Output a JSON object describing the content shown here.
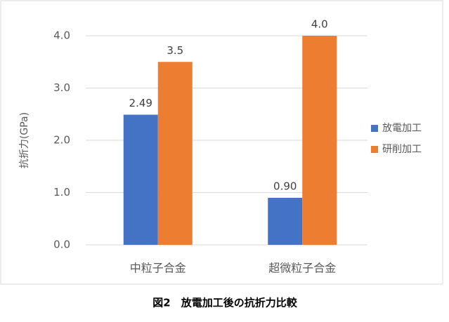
{
  "chart_data": {
    "type": "bar",
    "y_label": "抗折力(GPa)",
    "caption": "図2　放電加工後の抗折力比較",
    "categories": [
      "中粒子合金",
      "超微粒子合金"
    ],
    "series": [
      {
        "name": "放電加工",
        "color": "#4472c4",
        "values": [
          2.49,
          0.9
        ],
        "value_labels": [
          "2.49",
          "0.90"
        ]
      },
      {
        "name": "研削加工",
        "color": "#ed7d31",
        "values": [
          3.5,
          4.0
        ],
        "value_labels": [
          "3.5",
          "4.0"
        ]
      }
    ],
    "ylim": [
      0,
      4
    ],
    "yticks": [
      {
        "value": 0,
        "label": "0.0"
      },
      {
        "value": 1,
        "label": "1.0"
      },
      {
        "value": 2,
        "label": "2.0"
      },
      {
        "value": 3,
        "label": "3.0"
      },
      {
        "value": 4,
        "label": "4.0"
      }
    ],
    "grid": true,
    "legend": "right"
  }
}
